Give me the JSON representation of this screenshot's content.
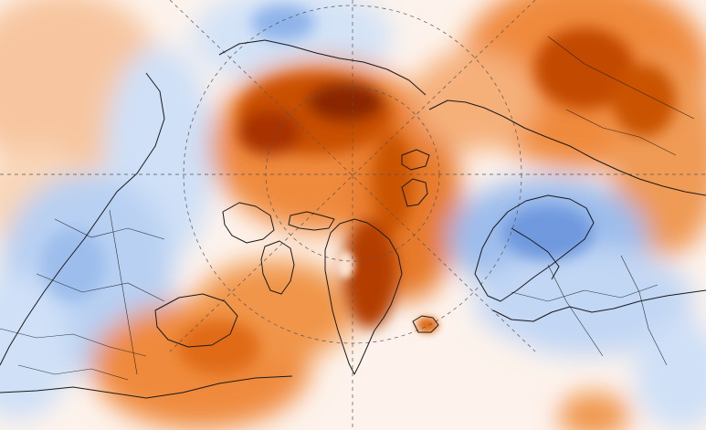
{
  "map": {
    "type": "polar-stereographic temperature anomaly map",
    "center": "north-pole",
    "colors": {
      "background": "#fdf3ec",
      "warm_light": "#f7c6a0",
      "warm_mid": "#ef8a3c",
      "warm_strong": "#d9600f",
      "warm_deep": "#a83300",
      "warm_darkest": "#8a2600",
      "cool_light": "#cfe0f7",
      "cool_mid": "#8fb4ea",
      "cool_strong": "#5f8fdb",
      "coast_line": "#1a1a1a",
      "graticule": "#555555"
    },
    "regions": [
      {
        "name": "arctic-ocean-warm-anomaly",
        "anomaly": "warm"
      },
      {
        "name": "greenland-warm-anomaly",
        "anomaly": "warm"
      },
      {
        "name": "siberia-warm-anomaly",
        "anomaly": "warm"
      },
      {
        "name": "canada-warm-anomaly",
        "anomaly": "warm"
      },
      {
        "name": "europe-cold-anomaly",
        "anomaly": "cool"
      },
      {
        "name": "alaska-west-canada-cold-anomaly",
        "anomaly": "cool"
      },
      {
        "name": "north-pacific-cold-anomaly",
        "anomaly": "cool"
      }
    ]
  }
}
